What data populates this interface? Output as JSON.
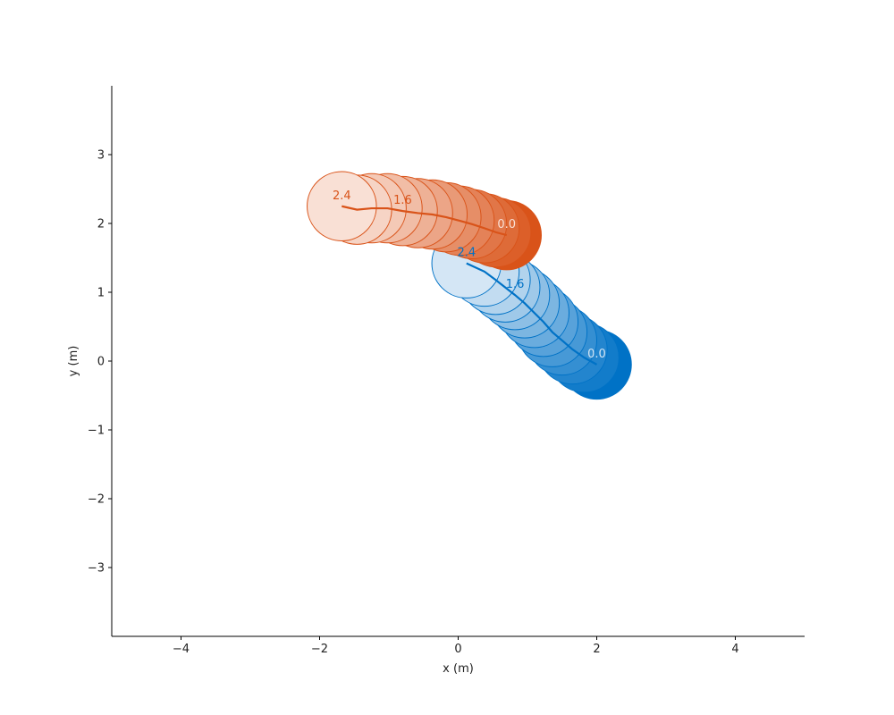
{
  "chart_data": {
    "type": "scatter",
    "title": "",
    "xlabel": "x (m)",
    "ylabel": "y (m)",
    "xlim": [
      -5,
      5
    ],
    "ylim": [
      -4,
      4
    ],
    "xticks": [
      {
        "value": -4,
        "label": "−4"
      },
      {
        "value": -2,
        "label": "−2"
      },
      {
        "value": 0,
        "label": "0"
      },
      {
        "value": 2,
        "label": "2"
      },
      {
        "value": 4,
        "label": "4"
      }
    ],
    "yticks": [
      {
        "value": -3,
        "label": "−3"
      },
      {
        "value": -2,
        "label": "−2"
      },
      {
        "value": -1,
        "label": "−1"
      },
      {
        "value": 0,
        "label": "0"
      },
      {
        "value": 1,
        "label": "1"
      },
      {
        "value": 2,
        "label": "2"
      },
      {
        "value": 3,
        "label": "3"
      }
    ],
    "grid": false,
    "agent_radius": 0.5,
    "series": [
      {
        "color": "#0072C6",
        "light_color": "#d4e6f5",
        "path": [
          {
            "x": 2.0,
            "y": -0.05
          },
          {
            "x": 1.82,
            "y": 0.05
          },
          {
            "x": 1.65,
            "y": 0.17
          },
          {
            "x": 1.5,
            "y": 0.3
          },
          {
            "x": 1.36,
            "y": 0.42
          },
          {
            "x": 1.23,
            "y": 0.57
          },
          {
            "x": 1.1,
            "y": 0.7
          },
          {
            "x": 0.96,
            "y": 0.84
          },
          {
            "x": 0.82,
            "y": 0.96
          },
          {
            "x": 0.68,
            "y": 1.07
          },
          {
            "x": 0.54,
            "y": 1.18
          },
          {
            "x": 0.38,
            "y": 1.3
          },
          {
            "x": 0.12,
            "y": 1.42
          }
        ],
        "time_labels": [
          {
            "index": 0,
            "text": "0.0"
          },
          {
            "index": 8,
            "text": "1.6"
          },
          {
            "index": 12,
            "text": "2.4"
          }
        ]
      },
      {
        "color": "#D95319",
        "light_color": "#f9e0d5",
        "path": [
          {
            "x": 0.7,
            "y": 1.83
          },
          {
            "x": 0.55,
            "y": 1.87
          },
          {
            "x": 0.38,
            "y": 1.93
          },
          {
            "x": 0.2,
            "y": 1.99
          },
          {
            "x": 0.02,
            "y": 2.04
          },
          {
            "x": -0.17,
            "y": 2.09
          },
          {
            "x": -0.37,
            "y": 2.13
          },
          {
            "x": -0.58,
            "y": 2.15
          },
          {
            "x": -0.8,
            "y": 2.18
          },
          {
            "x": -1.02,
            "y": 2.22
          },
          {
            "x": -1.25,
            "y": 2.22
          },
          {
            "x": -1.46,
            "y": 2.2
          },
          {
            "x": -1.68,
            "y": 2.25
          }
        ],
        "time_labels": [
          {
            "index": 0,
            "text": "0.0"
          },
          {
            "index": 8,
            "text": "1.6"
          },
          {
            "index": 12,
            "text": "2.4"
          }
        ]
      }
    ]
  }
}
